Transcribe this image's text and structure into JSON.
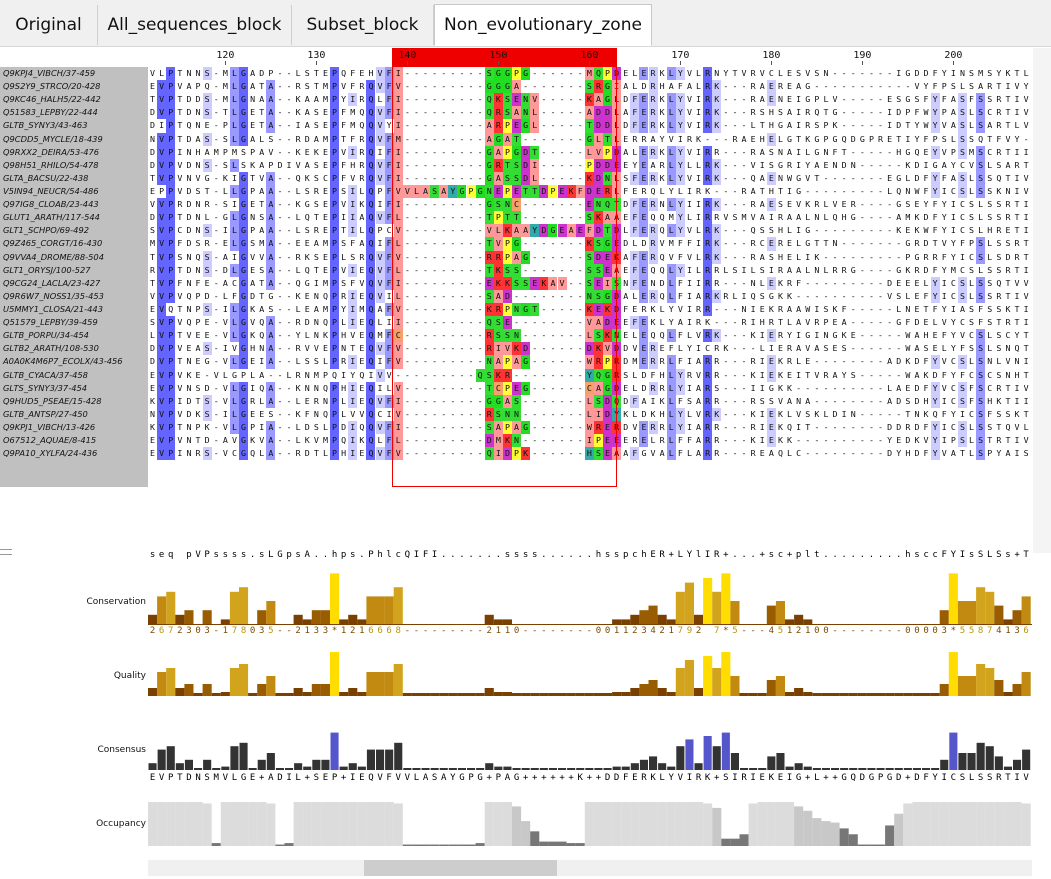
{
  "tabs": [
    {
      "label": "Original"
    },
    {
      "label": "All_sequences_block"
    },
    {
      "label": "Subset_block"
    },
    {
      "label": "Non_evolutionary_zone"
    }
  ],
  "active_tab": "Non_evolutionary_zone",
  "ruler": {
    "first_column": 112,
    "ticks": [
      "120",
      "130",
      "140",
      "150",
      "160",
      "170",
      "180",
      "190",
      "200"
    ],
    "zone_start": 139,
    "zone_end": 163
  },
  "sequences": [
    {
      "name": "Q9KPJ4_VIBCH/37-459",
      "seq": "VLPTNNS-MLGADP--LSTEPQFEHVFI---------SGGPG------MQPDELERKLYVLRNYTVRVCLESVSN-------IGDDFYINSMSYKTLVY"
    },
    {
      "name": "Q9S2Y9_STRCO/20-428",
      "seq": "EVPVAPQ-MLGATA--RSTMPVFRQVFV---------GGGA-------SRGIALDRHAFALRK---RAEREAG-----------VYFPSLSARTIVY"
    },
    {
      "name": "Q9KC46_HALH5/22-442",
      "seq": "TVPTDDS-MLGNAA--KAAMPYIRQLFI---------QKSENV-----KAGLDFERKLYVIRK---RAENEIGPLV-----ESGSFYFASFSSRTIVY"
    },
    {
      "name": "Q51583_LEPBY/22-444",
      "seq": "DVPTDNS-TLGETA--KASEPFMQQVFI---------QRSANL-----ADDLAFERKLYVIRK---RSHSAIRQTG-----IDPFWYPASLSCRTIVY"
    },
    {
      "name": "GLTB_SYNY3/43-463",
      "seq": "DIPTQNE-PLGETA--IASEPFMQQVYI---------ARPEGL-----TDDLDFERKLYVIRK---LTHGAIRSPK-----IDTYWYVASLSARTLVY"
    },
    {
      "name": "Q9CDD5_MYCLE/18-439",
      "seq": "NVPTDAS-SLGALS--RDAMPTFRQVFM---------AGAT-------GLTLERRAYVIRK---RAEHELGTKGPGQDGPRETIYFPSLSSQTFVY"
    },
    {
      "name": "Q9RXX2_DEIRA/53-476",
      "seq": "DVPINHAMPMSPAV--KEKEPVIRQIFI---------GAPGDT-----LVPDALERKLYVIRR---RASNAILGNFT-----HGQEYVPSMSCRTIIY"
    },
    {
      "name": "Q98H51_RHILO/54-478",
      "seq": "DVPVDNS-SLSKAPDIVASEPFHRQVFI---------GRTSDI-----PDDEEYEARLYLLRK---VISGRIYAENDN-----KDIGAYCVSLSARTIVY"
    },
    {
      "name": "GLTA_BACSU/22-438",
      "seq": "TVPVNVG-KIGTVA--QKSCPFVRQVFI---------GASSDL-----KDNLSFERKLYVIRK---QAENWGVT-------EGLDFYFASLSSQTIVY"
    },
    {
      "name": "V5IN94_NEUCR/54-486",
      "seq": "EPPVDST-LLGPAA--LSREPSILQPFVVLASAYGPGNEPETTDPEKFDERLFERQLYLIRK---RATHTIG---------LQNWFYICSLSSKNIVY"
    },
    {
      "name": "Q97IG8_CLOAB/23-443",
      "seq": "VVPRDNR-SIGETA--KGSEPVIKQIFI---------GSNC-------ENQTDFERNLYIIRK---RAESEVKRLVER----GSEYFYICSLSSRTIVY"
    },
    {
      "name": "GLUT1_ARATH/117-544",
      "seq": "DVPTDNL-GLGNSA--LQTEPIIAQVFL---------TPTT-------SKAAEFEQQMYLIRRVSMVAIRAALNLQHG----AMKDFYICSLSSRTIVY"
    },
    {
      "name": "GLT1_SCHPO/69-492",
      "seq": "SVPCDNS-ILGPAA--LSREPTILQPCV---------VLKAAYDGEAEFDTDLFERQLYVLRK---QSSHLIG---------KEKWFYICSLHRETIVY"
    },
    {
      "name": "Q9Z465_CORGT/16-430",
      "seq": "MVPFDSR-ELGSMA--EEAMPSFAQIFL---------TVPG-------KSGEDLDRVMFFIRK---RCERELGTTN-------GRDTVYFPSLSSRTIIY"
    },
    {
      "name": "Q9VVA4_DROME/88-504",
      "seq": "TVPSNQS-AIGVVA--RKSEPLSRQVFV---------RRPAG------SDEKAFERQVFVLRK---RASHELIK---------PGRRFYICSLSDRTVVY"
    },
    {
      "name": "GLT1_ORYSJ/100-527",
      "seq": "RVPTDNS-DLGESA--LQTEPVIEQVFL---------TKSS-------SSEAEFEQQLYILRRLSILSIRAALNLRRG----GKRDFYMCSLSSRTIVY"
    },
    {
      "name": "Q9CG24_LACLA/23-427",
      "seq": "TVPFNFE-ACGATA--QGIMPSFVQVFI---------EKKSSEKAV--SEISNFENDLFIIRR---NLEKRF---------DEEELYICSLSSQTVVY"
    },
    {
      "name": "Q9R6W7_NOSS1/35-453",
      "seq": "VVPVQPD-LFGDTG--KENQPRIEQVIL---------SAD--------NSGDALERQLFIARKRLIQSGKK----------VSLEFYICSLSSRTIVY"
    },
    {
      "name": "U5MMY1_CLOSA/21-443",
      "seq": "EVQTNPS-ILGKAS--LEAMPYIMQAFV---------KRPNGT-----KEKDFERKLYVIRR---NIEKRAAWISKF-----LNETFYIASFSSKTIVY"
    },
    {
      "name": "Q51579_LEPBY/39-459",
      "seq": "SVPVQPE-VLGVQA--RDNQPLIEQLII---------QSE--------VADEEFEKLYAIRK---RIHRTLAVRPEA-----GFDELVYCSFSTRTIVY"
    },
    {
      "name": "GLTB_PORPU/34-454",
      "seq": "LVPTVEE-VLGKQA--YLNKPHVEQMFC---------RSSN-------LSKNELEQQLFLVRK---KIERYIGINGKE-----WAHEFYVCSLSCYTIVY"
    },
    {
      "name": "GLTB2_ARATH/108-530",
      "seq": "DVPVEAS-IVGHNA--RVVEPNTEQVFV---------RIVKD------DKVDDVEREFLYICRK---LIERAVASES------WASELYFSSLSNQTIVY"
    },
    {
      "name": "A0A0K4M6P7_ECOLX/43-456",
      "seq": "DVPTNEG-VLGEIA--LSSLPRIEQIFV---------NAPAG------WRPRDMERRLFIARR---RIEKRLE--------ADKDFYVCSLSNLVNIY"
    },
    {
      "name": "GLTB_CYACA/37-458",
      "seq": "EVPVKE-VLGPLA--LRNMPQIYQIVV---------QSKR--------YQGRSLDFHLYRVRR---KIEKEITVRAYS-----WAKDFYFCSCSNHTIVY"
    },
    {
      "name": "GLTS_SYNY3/37-454",
      "seq": "EVPVNSD-VLGIQA--KNNQPHIEQILV---------TCPEG------CAGDELDRRLYIARS---IIGKK----------LAEDFYVCSFSCRTIVY"
    },
    {
      "name": "Q9HUD5_PSEAE/15-428",
      "seq": "KVPIDTS-VLGRLA--LERNPLIEQVFI---------GGAS-------LSDQDFAIKLFSARR---RSSVANA--------ADSDHYICSFSHKTIIY"
    },
    {
      "name": "GLTB_ANTSP/27-450",
      "seq": "NVPVDKS-ILGEES--KFNQPLVVQCIV---------RSNN-------LIDYKLDKHLYLVRK---KIEKLVSKLDIN-----TNKQFYICSFSSKTIVY"
    },
    {
      "name": "Q9KPJ1_VIBCH/13-426",
      "seq": "KVPTNPK-VLGPIA--LDSLPDIQQVFI---------SAPAG------WRERDVERRLYIARR---RIEKQIT--------DDRDFYICSLSSTQVLVY"
    },
    {
      "name": "O67512_AQUAE/8-415",
      "seq": "EVPVNTD-AVGKVA--LKVMPQIKQLFL---------DMKN-------IPEEERELRLFFARR---KIEKK----------YEDKVYIPSLSTRTIVY"
    },
    {
      "name": "Q9PA10_XYLFA/24-436",
      "seq": "EVPINRS-VCGQLA--RDTLPHIEQVFV---------QIDPK------HSEAAFGVALFLARR---REAQLC---------DYHDFYVATLSPYAISY"
    }
  ],
  "annotations": {
    "consensus_text_row": "seq pVPssss.sLGpsA..hps.PhlcQIFI.......ssss......hsspchER+LYlIR+...+sc+plt.........hsccFYIsSLSs+TIVY",
    "conservation_label": "Conservation",
    "conservation_digits": "2672303-178035--2133*1216668---------2110--------001123421792 7*5---4512100--------00003*5587413655*",
    "quality_label": "Quality",
    "consensus_label": "Consensus",
    "consensus_seq": "EVPTDNSMVLGE+ADIL+SEP+IEQVFVVLASAYGPG+PAG++++++K++DDFERKLYVIRK+SIRIEKEIG+L++GQDGPGD+DFYICSLSSRTIVY",
    "occupancy_label": "Occupancy"
  }
}
